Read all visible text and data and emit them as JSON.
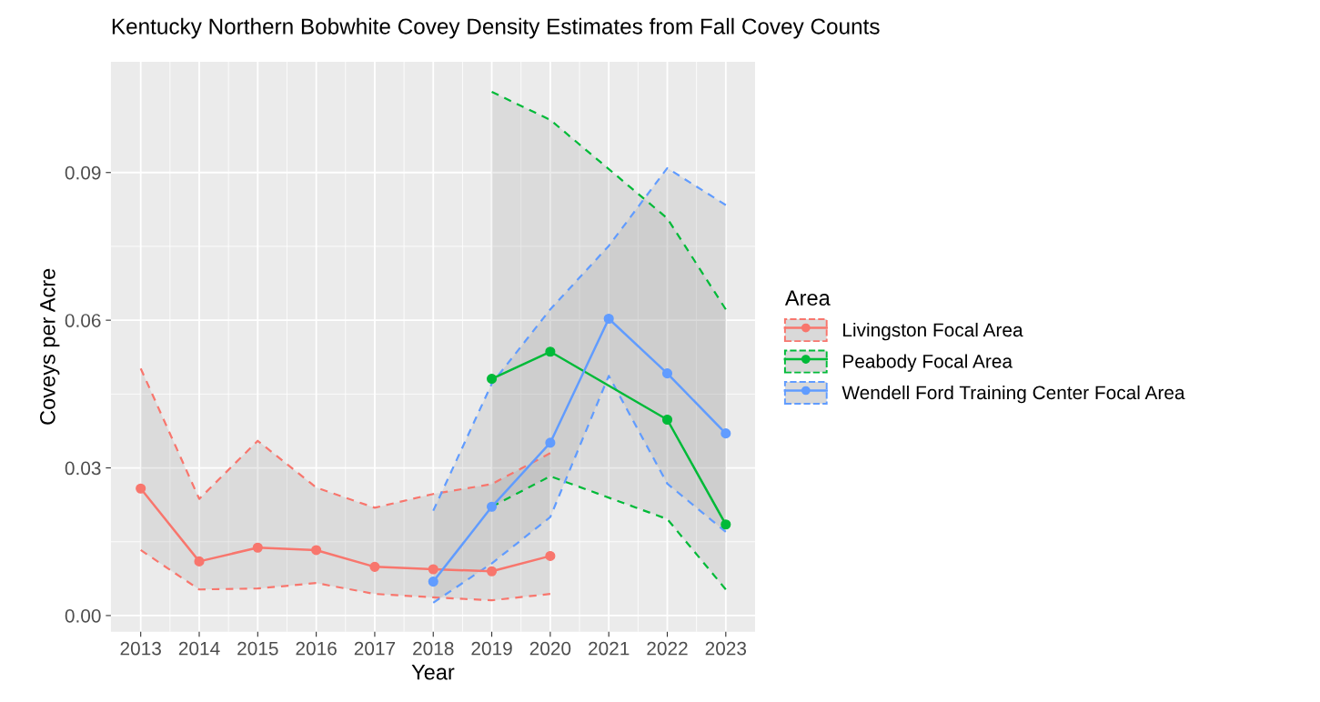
{
  "chart_data": {
    "type": "line",
    "title": "Kentucky Northern Bobwhite Covey Density Estimates from Fall Covey Counts",
    "xlabel": "Year",
    "ylabel": "Coveys per Acre",
    "legend_title": "Area",
    "x": [
      2013,
      2014,
      2015,
      2016,
      2017,
      2018,
      2019,
      2020,
      2021,
      2022,
      2023
    ],
    "series": [
      {
        "name": "Livingston Focal Area",
        "color": "#f8766d",
        "values": [
          0.0258,
          0.011,
          0.0138,
          0.0133,
          0.0099,
          0.0094,
          0.009,
          0.0121,
          null,
          null,
          null
        ],
        "lower": [
          0.0133,
          0.0053,
          0.0055,
          0.0066,
          0.0044,
          0.0037,
          0.0031,
          0.0044,
          null,
          null,
          null
        ],
        "upper": [
          0.0502,
          0.0237,
          0.0355,
          0.026,
          0.0219,
          0.0247,
          0.0267,
          0.033,
          null,
          null,
          null
        ]
      },
      {
        "name": "Peabody Focal Area",
        "color": "#00ba38",
        "values": [
          null,
          null,
          null,
          null,
          null,
          null,
          0.0481,
          0.0536,
          null,
          0.0398,
          0.0185
        ],
        "lower": [
          null,
          null,
          null,
          null,
          null,
          null,
          0.0221,
          0.0283,
          null,
          0.0196,
          0.0053
        ],
        "upper": [
          null,
          null,
          null,
          null,
          null,
          null,
          0.1064,
          0.1007,
          null,
          0.0807,
          0.0622
        ]
      },
      {
        "name": "Wendell Ford Training Center Focal Area",
        "color": "#619cff",
        "values": [
          null,
          null,
          null,
          null,
          null,
          0.0069,
          0.0221,
          0.0351,
          0.0603,
          0.0492,
          0.037
        ],
        "lower": [
          null,
          null,
          null,
          null,
          null,
          0.0026,
          0.0106,
          0.02,
          0.0487,
          0.0268,
          0.017
        ],
        "upper": [
          null,
          null,
          null,
          null,
          null,
          0.0213,
          0.0471,
          0.0622,
          0.0751,
          0.0909,
          0.0834
        ]
      },
      {
        "color": "#f8766d",
        "line_style": "dashed",
        "marker": "none",
        "values": [
          0.0133,
          0.0053,
          0.0055,
          0.0066,
          0.0044,
          0.0037,
          0.0031,
          0.0044,
          null,
          null,
          null
        ]
      },
      {
        "color": "#f8766d",
        "line_style": "dashed",
        "marker": "none",
        "values": [
          0.0502,
          0.0237,
          0.0355,
          0.026,
          0.0219,
          0.0247,
          0.0267,
          0.033,
          null,
          null,
          null
        ]
      },
      {
        "color": "#00ba38",
        "line_style": "dashed",
        "marker": "none",
        "values": [
          null,
          null,
          null,
          null,
          null,
          null,
          0.0221,
          0.0283,
          null,
          0.0196,
          0.0053
        ]
      },
      {
        "color": "#00ba38",
        "line_style": "dashed",
        "marker": "none",
        "values": [
          null,
          null,
          null,
          null,
          null,
          null,
          0.1064,
          0.1007,
          null,
          0.0807,
          0.0622
        ]
      },
      {
        "color": "#619cff",
        "line_style": "dashed",
        "marker": "none",
        "values": [
          null,
          null,
          null,
          null,
          null,
          0.0026,
          0.0106,
          0.02,
          0.0487,
          0.0268,
          0.017
        ]
      },
      {
        "color": "#619cff",
        "line_style": "dashed",
        "marker": "none",
        "values": [
          null,
          null,
          null,
          null,
          null,
          0.0213,
          0.0471,
          0.0622,
          0.0751,
          0.0909,
          0.0834
        ]
      }
    ],
    "xlim": [
      2012.49,
      2023.5
    ],
    "xticks": [
      2013,
      2014,
      2015,
      2016,
      2017,
      2018,
      2019,
      2020,
      2021,
      2022,
      2023
    ],
    "ylim": [
      -0.0033,
      0.1125
    ],
    "yticks": [
      {
        "value": 0,
        "label": "0.00"
      },
      {
        "value": 0.03,
        "label": "0.03"
      },
      {
        "value": 0.06,
        "label": "0.06"
      },
      {
        "value": 0.09,
        "label": "0.09"
      }
    ],
    "grid": true,
    "legend": "right",
    "marker": "circle",
    "line_style": "solid"
  }
}
